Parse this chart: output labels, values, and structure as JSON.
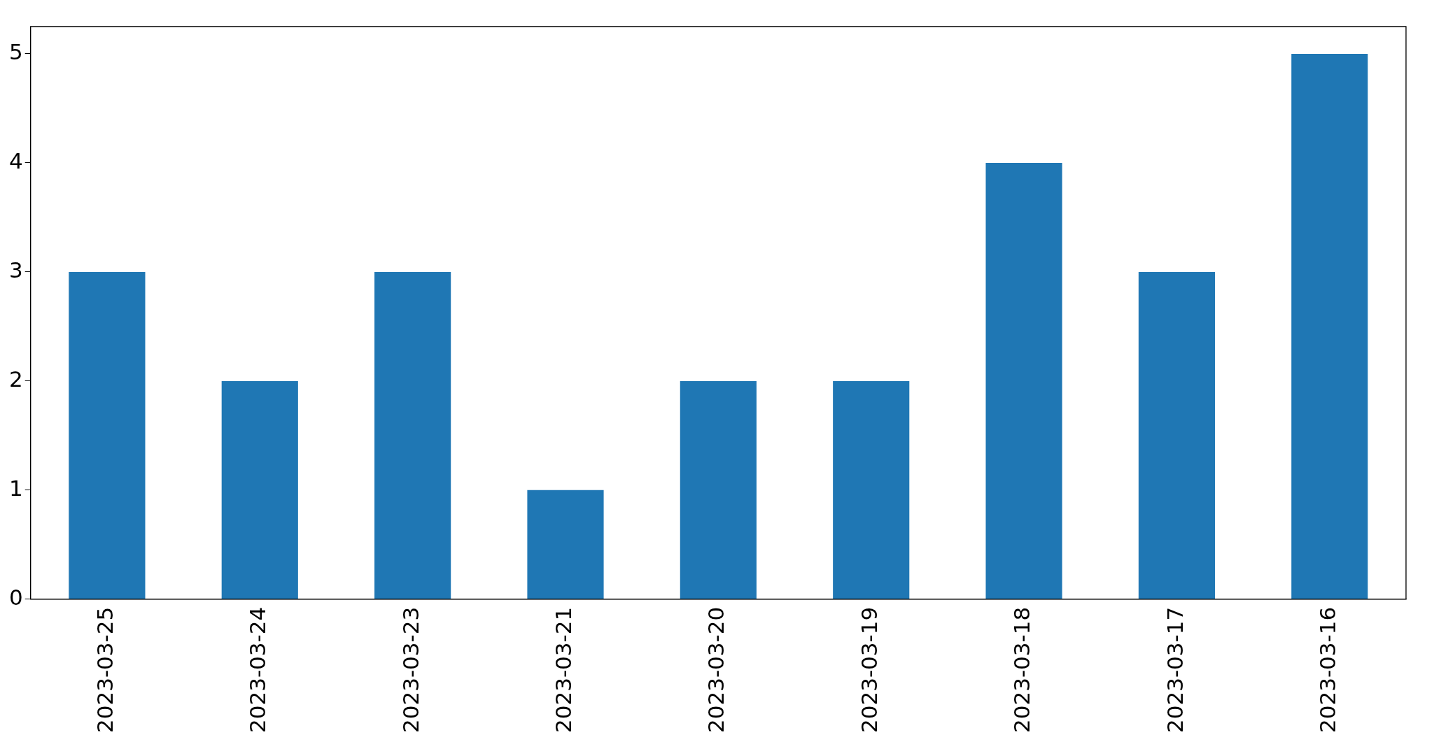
{
  "chart_data": {
    "type": "bar",
    "categories": [
      "2023-03-25",
      "2023-03-24",
      "2023-03-23",
      "2023-03-21",
      "2023-03-20",
      "2023-03-19",
      "2023-03-18",
      "2023-03-17",
      "2023-03-16"
    ],
    "values": [
      3,
      2,
      3,
      1,
      2,
      2,
      4,
      3,
      5
    ],
    "color": "#1f77b4",
    "ylim": [
      0,
      5.25
    ],
    "yticks": [
      0,
      1,
      2,
      3,
      4,
      5
    ],
    "grid": false,
    "legend": false
  }
}
